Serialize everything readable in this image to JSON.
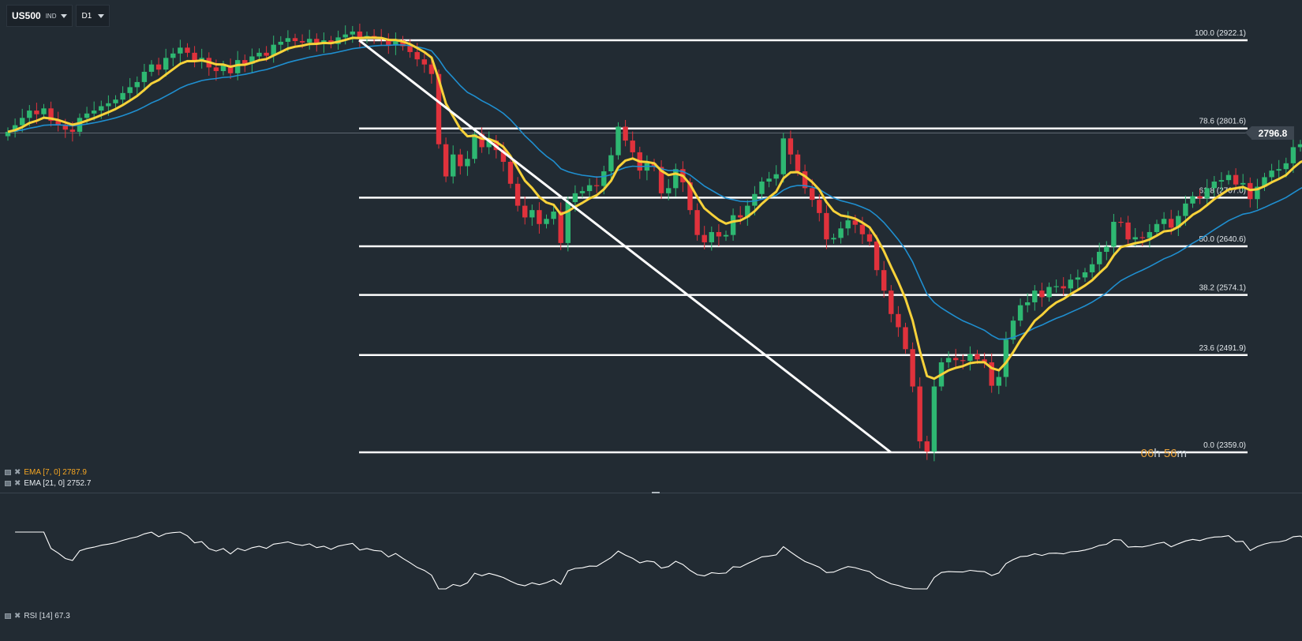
{
  "toolbar": {
    "symbol": "US500",
    "symbol_type": "IND",
    "timeframe": "D1"
  },
  "current_price": "2796.8",
  "countdown": {
    "hours": "06",
    "h_unit": "h",
    "minutes": "56",
    "m_unit": "m"
  },
  "indicators": {
    "ema7": {
      "label": "EMA [7, 0] 2787.9",
      "color": "#f5a623"
    },
    "ema21": {
      "label": "EMA [21, 0] 2752.7",
      "color": "#e6ebef"
    },
    "rsi": {
      "label": "RSI [14] 67.3"
    }
  },
  "fib_levels": [
    {
      "label": "100.0 (2922.1)"
    },
    {
      "label": "78.6 (2801.6)"
    },
    {
      "label": "61.8 (2707.0)"
    },
    {
      "label": "50.0 (2640.6)"
    },
    {
      "label": "38.2 (2574.1)"
    },
    {
      "label": "23.6 (2491.9)"
    },
    {
      "label": "0.0 (2359.0)"
    }
  ],
  "colors": {
    "background": "#222b33",
    "bull": "#2eb872",
    "bear": "#e0323c",
    "ema7_line": "#f7d23a",
    "ema21_line": "#1f8fd0",
    "fib_line": "#ffffff",
    "rsi_line": "#ffffff"
  },
  "chart_data": {
    "type": "candlestick",
    "instrument": "US500",
    "timeframe": "D1",
    "fibonacci": {
      "levels": [
        {
          "ratio": 100.0,
          "price": 2922.1
        },
        {
          "ratio": 78.6,
          "price": 2801.6
        },
        {
          "ratio": 61.8,
          "price": 2707.0
        },
        {
          "ratio": 50.0,
          "price": 2640.6
        },
        {
          "ratio": 38.2,
          "price": 2574.1
        },
        {
          "ratio": 23.6,
          "price": 2491.9
        },
        {
          "ratio": 0.0,
          "price": 2359.0
        }
      ]
    },
    "trendline": {
      "from_price": 2922.1,
      "to_price": 2359.0
    },
    "closes": [
      2797,
      2806,
      2816,
      2826,
      2821,
      2829,
      2812,
      2807,
      2800,
      2797,
      2816,
      2822,
      2826,
      2832,
      2836,
      2841,
      2850,
      2858,
      2865,
      2879,
      2889,
      2882,
      2898,
      2904,
      2912,
      2905,
      2893,
      2898,
      2885,
      2880,
      2888,
      2877,
      2895,
      2890,
      2900,
      2905,
      2901,
      2916,
      2920,
      2925,
      2921,
      2919,
      2924,
      2918,
      2922,
      2917,
      2926,
      2930,
      2934,
      2924,
      2928,
      2925,
      2924,
      2915,
      2922,
      2914,
      2906,
      2896,
      2889,
      2876,
      2780,
      2736,
      2766,
      2750,
      2760,
      2794,
      2776,
      2785,
      2772,
      2756,
      2726,
      2696,
      2680,
      2690,
      2671,
      2678,
      2688,
      2645,
      2701,
      2713,
      2716,
      2724,
      2723,
      2743,
      2765,
      2804,
      2785,
      2769,
      2744,
      2754,
      2749,
      2713,
      2720,
      2746,
      2728,
      2690,
      2656,
      2646,
      2660,
      2654,
      2656,
      2683,
      2680,
      2696,
      2712,
      2729,
      2733,
      2739,
      2788,
      2766,
      2743,
      2720,
      2704,
      2686,
      2650,
      2652,
      2665,
      2676,
      2670,
      2657,
      2647,
      2608,
      2580,
      2548,
      2530,
      2500,
      2449,
      2374,
      2360,
      2449,
      2482,
      2488,
      2485,
      2484,
      2493,
      2486,
      2482,
      2450,
      2462,
      2513,
      2539,
      2560,
      2564,
      2580,
      2571,
      2585,
      2586,
      2583,
      2595,
      2598,
      2605,
      2616,
      2633,
      2640,
      2674,
      2673,
      2650,
      2653,
      2652,
      2660,
      2671,
      2678,
      2666,
      2682,
      2699,
      2709,
      2706,
      2720,
      2729,
      2731,
      2738,
      2725,
      2727,
      2705,
      2722,
      2735,
      2744,
      2746,
      2754,
      2776,
      2780,
      2771,
      2785,
      2784,
      2787,
      2793,
      2792,
      2793,
      2795,
      2796,
      2797
    ],
    "ema7_last": 2787.9,
    "ema21_last": 2752.7,
    "rsi": {
      "period": 14,
      "last": 67.3,
      "ylim": [
        0,
        100
      ]
    }
  }
}
